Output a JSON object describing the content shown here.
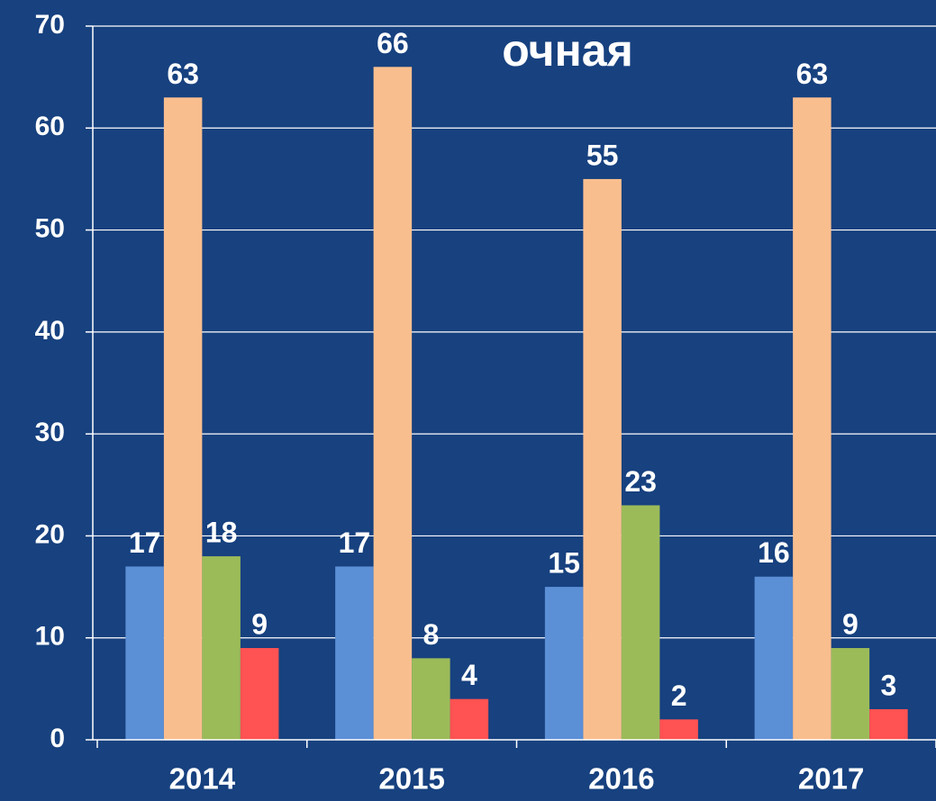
{
  "chart_data": {
    "type": "bar",
    "title": "очная",
    "categories": [
      "2014",
      "2015",
      "2016",
      "2017"
    ],
    "series": [
      {
        "color": "#5b8fd6",
        "values": [
          17,
          17,
          15,
          16
        ]
      },
      {
        "color": "#f9be8e",
        "values": [
          63,
          66,
          55,
          63
        ]
      },
      {
        "color": "#9bbb59",
        "values": [
          18,
          8,
          23,
          9
        ]
      },
      {
        "color": "#ff5252",
        "values": [
          9,
          4,
          2,
          3
        ]
      }
    ],
    "ylim": [
      0,
      70
    ],
    "yticks": [
      0,
      10,
      20,
      30,
      40,
      50,
      60,
      70
    ],
    "grid": true
  }
}
